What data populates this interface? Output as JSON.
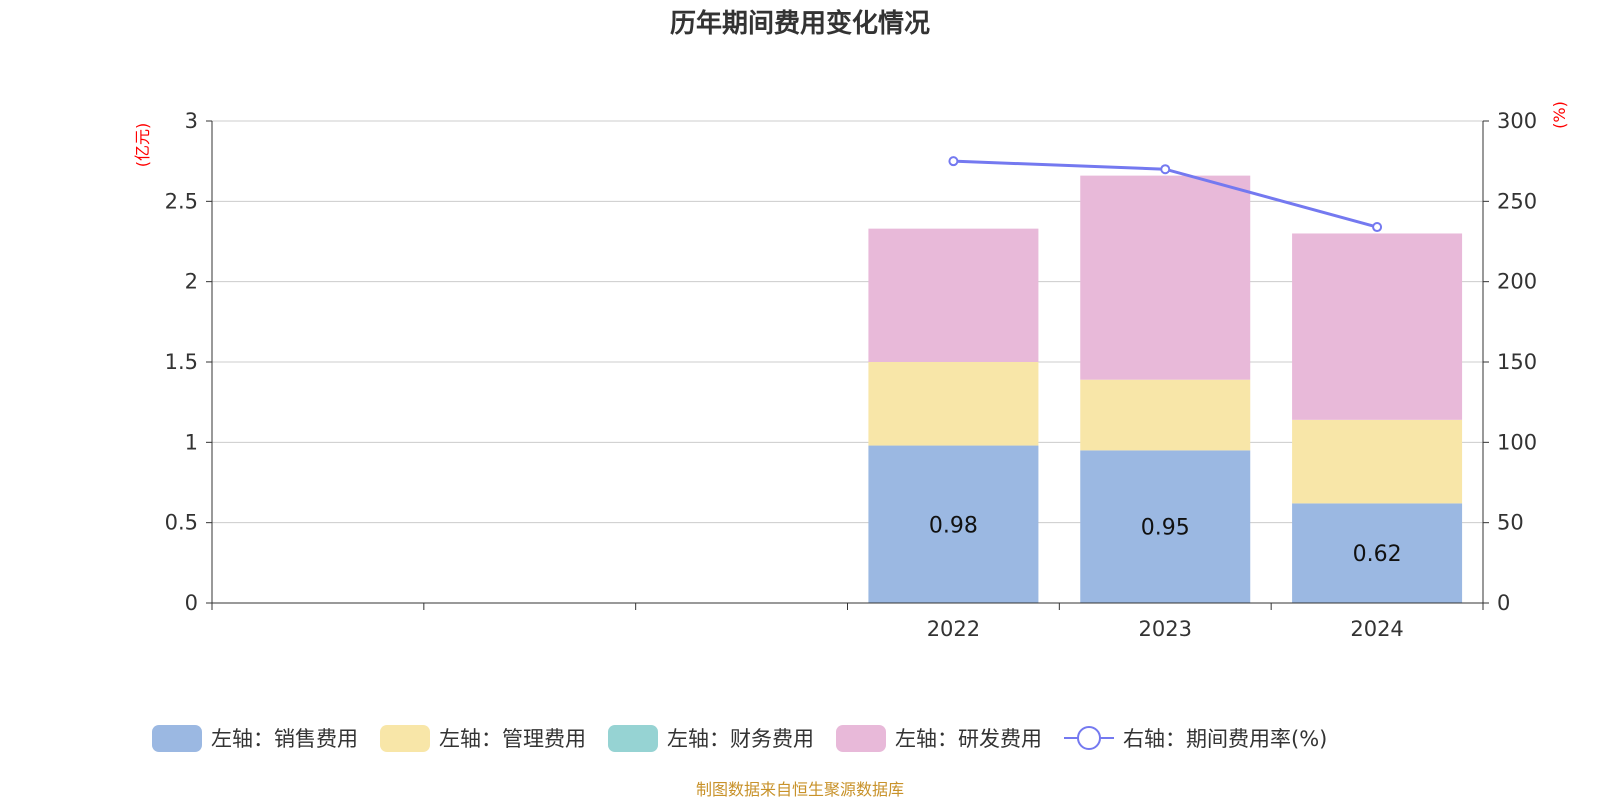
{
  "chart_data": {
    "type": "bar",
    "title": "历年期间费用变化情况",
    "categories": [
      "",
      "",
      "",
      "2022",
      "2023",
      "2024"
    ],
    "left_axis": {
      "unit": "(亿元)",
      "ylim": [
        0,
        3
      ],
      "ticks": [
        "0",
        "0.5",
        "1",
        "1.5",
        "2",
        "2.5",
        "3"
      ]
    },
    "right_axis": {
      "unit": "(%)",
      "ylim": [
        0,
        300
      ],
      "ticks": [
        "0",
        "50",
        "100",
        "150",
        "200",
        "250",
        "300"
      ]
    },
    "series": [
      {
        "name": "左轴：销售费用",
        "kind": "bar",
        "color": "#9bb8e2",
        "values": [
          null,
          null,
          null,
          0.98,
          0.95,
          0.62
        ],
        "labels": [
          "",
          "",
          "",
          "0.98",
          "0.95",
          "0.62"
        ]
      },
      {
        "name": "左轴：管理费用",
        "kind": "bar",
        "color": "#f8e6a8",
        "values": [
          null,
          null,
          null,
          0.52,
          0.44,
          0.52
        ]
      },
      {
        "name": "左轴：财务费用",
        "kind": "bar",
        "color": "#96d3d3",
        "values": [
          null,
          null,
          null,
          0,
          0,
          0
        ]
      },
      {
        "name": "左轴：研发费用",
        "kind": "bar",
        "color": "#e8b9d9",
        "values": [
          null,
          null,
          null,
          0.83,
          1.27,
          1.16
        ]
      },
      {
        "name": "右轴：期间费用率(%)",
        "kind": "line",
        "axis": "right",
        "color": "#7479f0",
        "values": [
          null,
          null,
          null,
          275,
          270,
          234
        ]
      }
    ],
    "grid": true,
    "legend_position": "bottom"
  },
  "source_note": "制图数据来自恒生聚源数据库"
}
